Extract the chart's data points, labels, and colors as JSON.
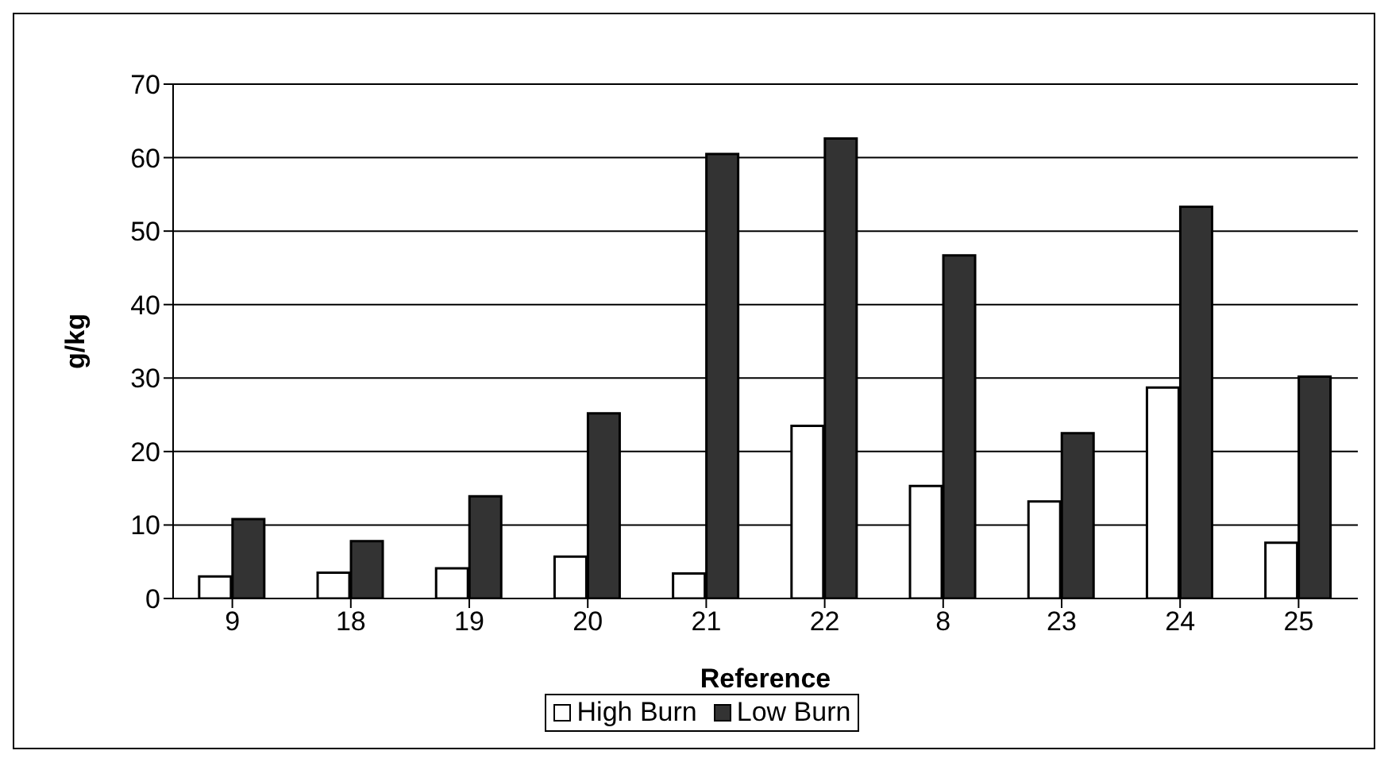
{
  "chart_data": {
    "type": "bar",
    "xlabel": "Reference",
    "ylabel": "g/kg",
    "categories": [
      "9",
      "18",
      "19",
      "20",
      "21",
      "22",
      "8",
      "23",
      "24",
      "25"
    ],
    "series": [
      {
        "name": "High Burn",
        "color": "#ffffff",
        "values": [
          3.0,
          3.5,
          4.1,
          5.7,
          3.4,
          23.5,
          15.3,
          13.2,
          28.7,
          7.6
        ]
      },
      {
        "name": "Low Burn",
        "color": "#333333",
        "values": [
          10.8,
          7.8,
          13.9,
          25.2,
          60.5,
          62.6,
          46.7,
          22.5,
          53.3,
          30.2
        ]
      }
    ],
    "ylim": [
      0,
      70
    ],
    "yticks": [
      0,
      10,
      20,
      30,
      40,
      50,
      60,
      70
    ],
    "grid": "y",
    "legend": "bottom"
  }
}
